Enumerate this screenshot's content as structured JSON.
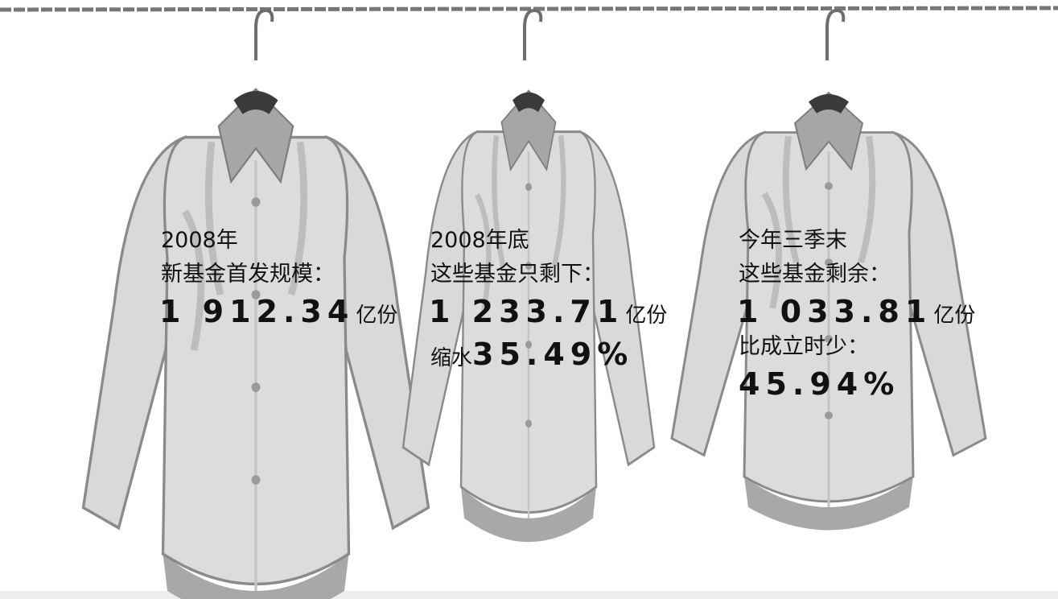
{
  "shirts": [
    {
      "heading": "2008年",
      "subheading": "新基金首发规模：",
      "amount": "1 912.34",
      "unit": "亿份"
    },
    {
      "heading": "2008年底",
      "subheading": "这些基金只剩下：",
      "amount": "1 233.71",
      "unit": "亿份",
      "change_label": "缩水",
      "change": "35.49%"
    },
    {
      "heading": "今年三季末",
      "subheading": "这些基金剩余：",
      "amount": "1 033.81",
      "unit": "亿份",
      "change_label": "比成立时少：",
      "change": "45.94%"
    }
  ]
}
